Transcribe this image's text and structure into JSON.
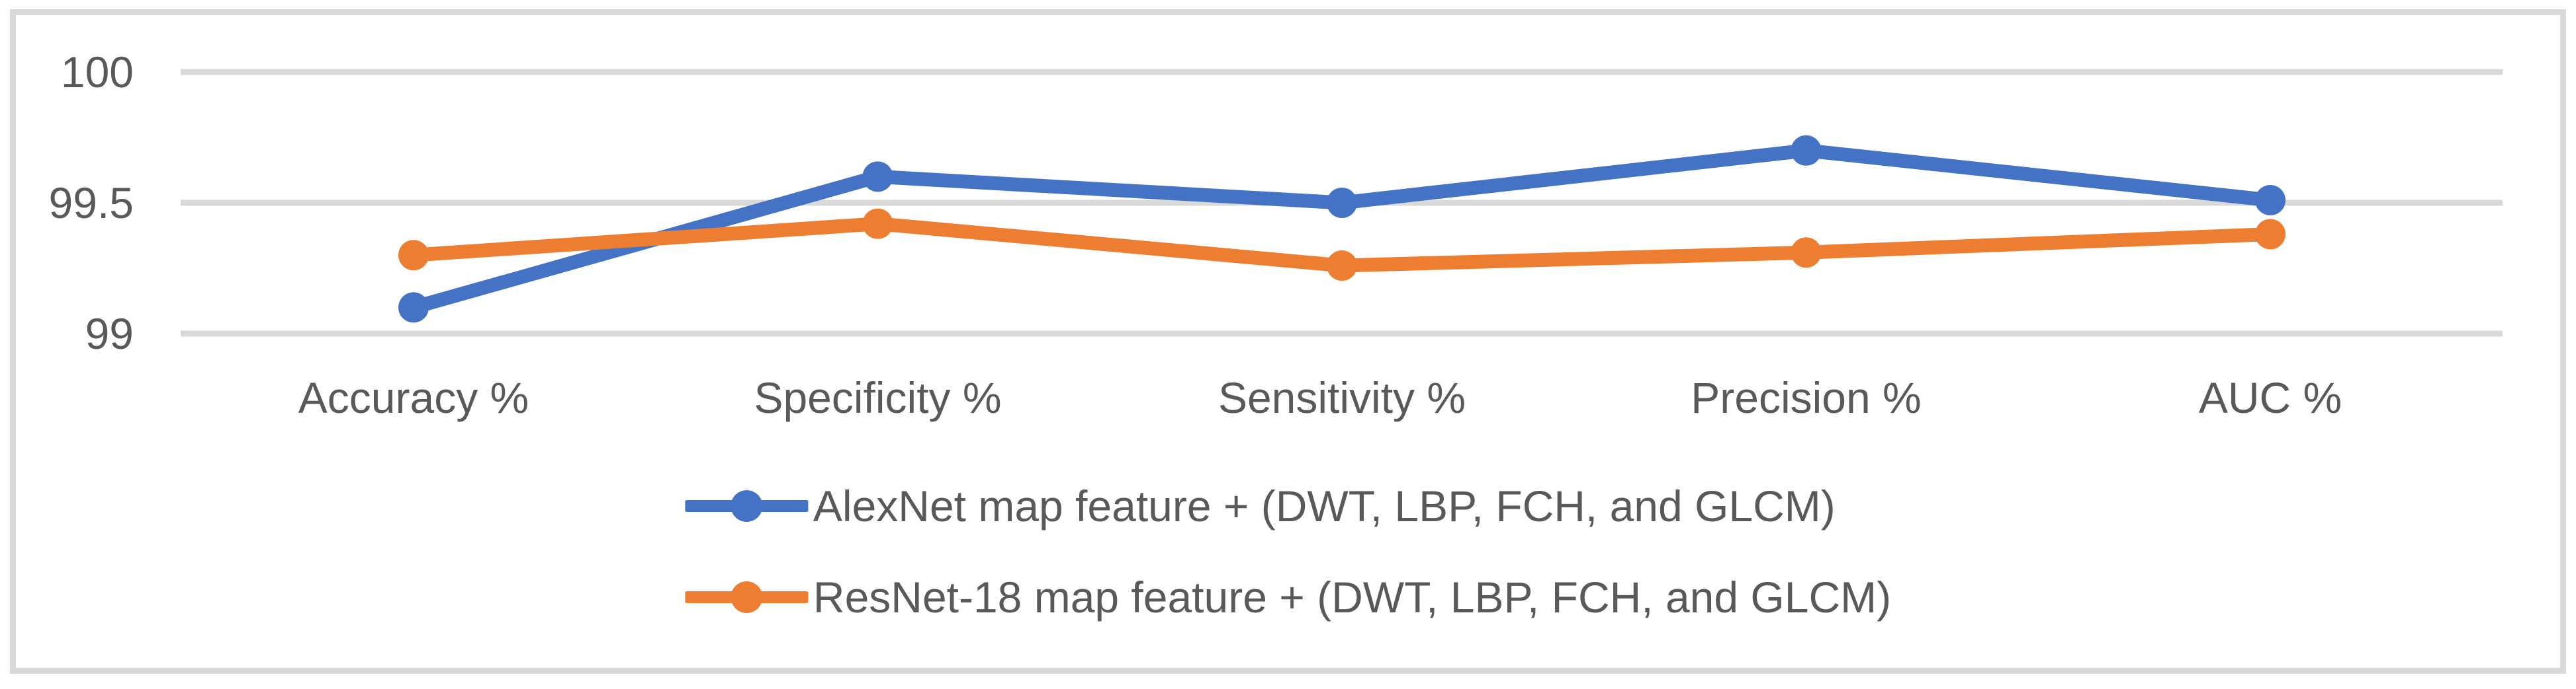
{
  "figure": {
    "background": "#FFFFFF",
    "border_color": "#D9D9D9",
    "gridline_color": "#D9D9D9",
    "text_color": "#595959"
  },
  "chart_data": {
    "type": "line",
    "title": "",
    "xlabel": "",
    "ylabel": "",
    "grid": true,
    "legend_position": "bottom",
    "categories": [
      "Accuracy %",
      "Specificity %",
      "Sensitivity %",
      "Precision %",
      "AUC %"
    ],
    "series": [
      {
        "name": "AlexNet map feature + (DWT, LBP, FCH, and GLCM)",
        "color": "#4472C4",
        "values": [
          99.1,
          99.6,
          99.5,
          99.7,
          99.51
        ]
      },
      {
        "name": "ResNet-18 map feature + (DWT, LBP, FCH, and GLCM)",
        "color": "#ED7D31",
        "values": [
          99.3,
          99.42,
          99.26,
          99.31,
          99.38
        ]
      }
    ],
    "yticks": [
      {
        "label": "100",
        "value": 100
      },
      {
        "label": "99.5",
        "value": 99.5
      },
      {
        "label": "99",
        "value": 99
      }
    ],
    "ylim": [
      98.86,
      100.2
    ]
  }
}
